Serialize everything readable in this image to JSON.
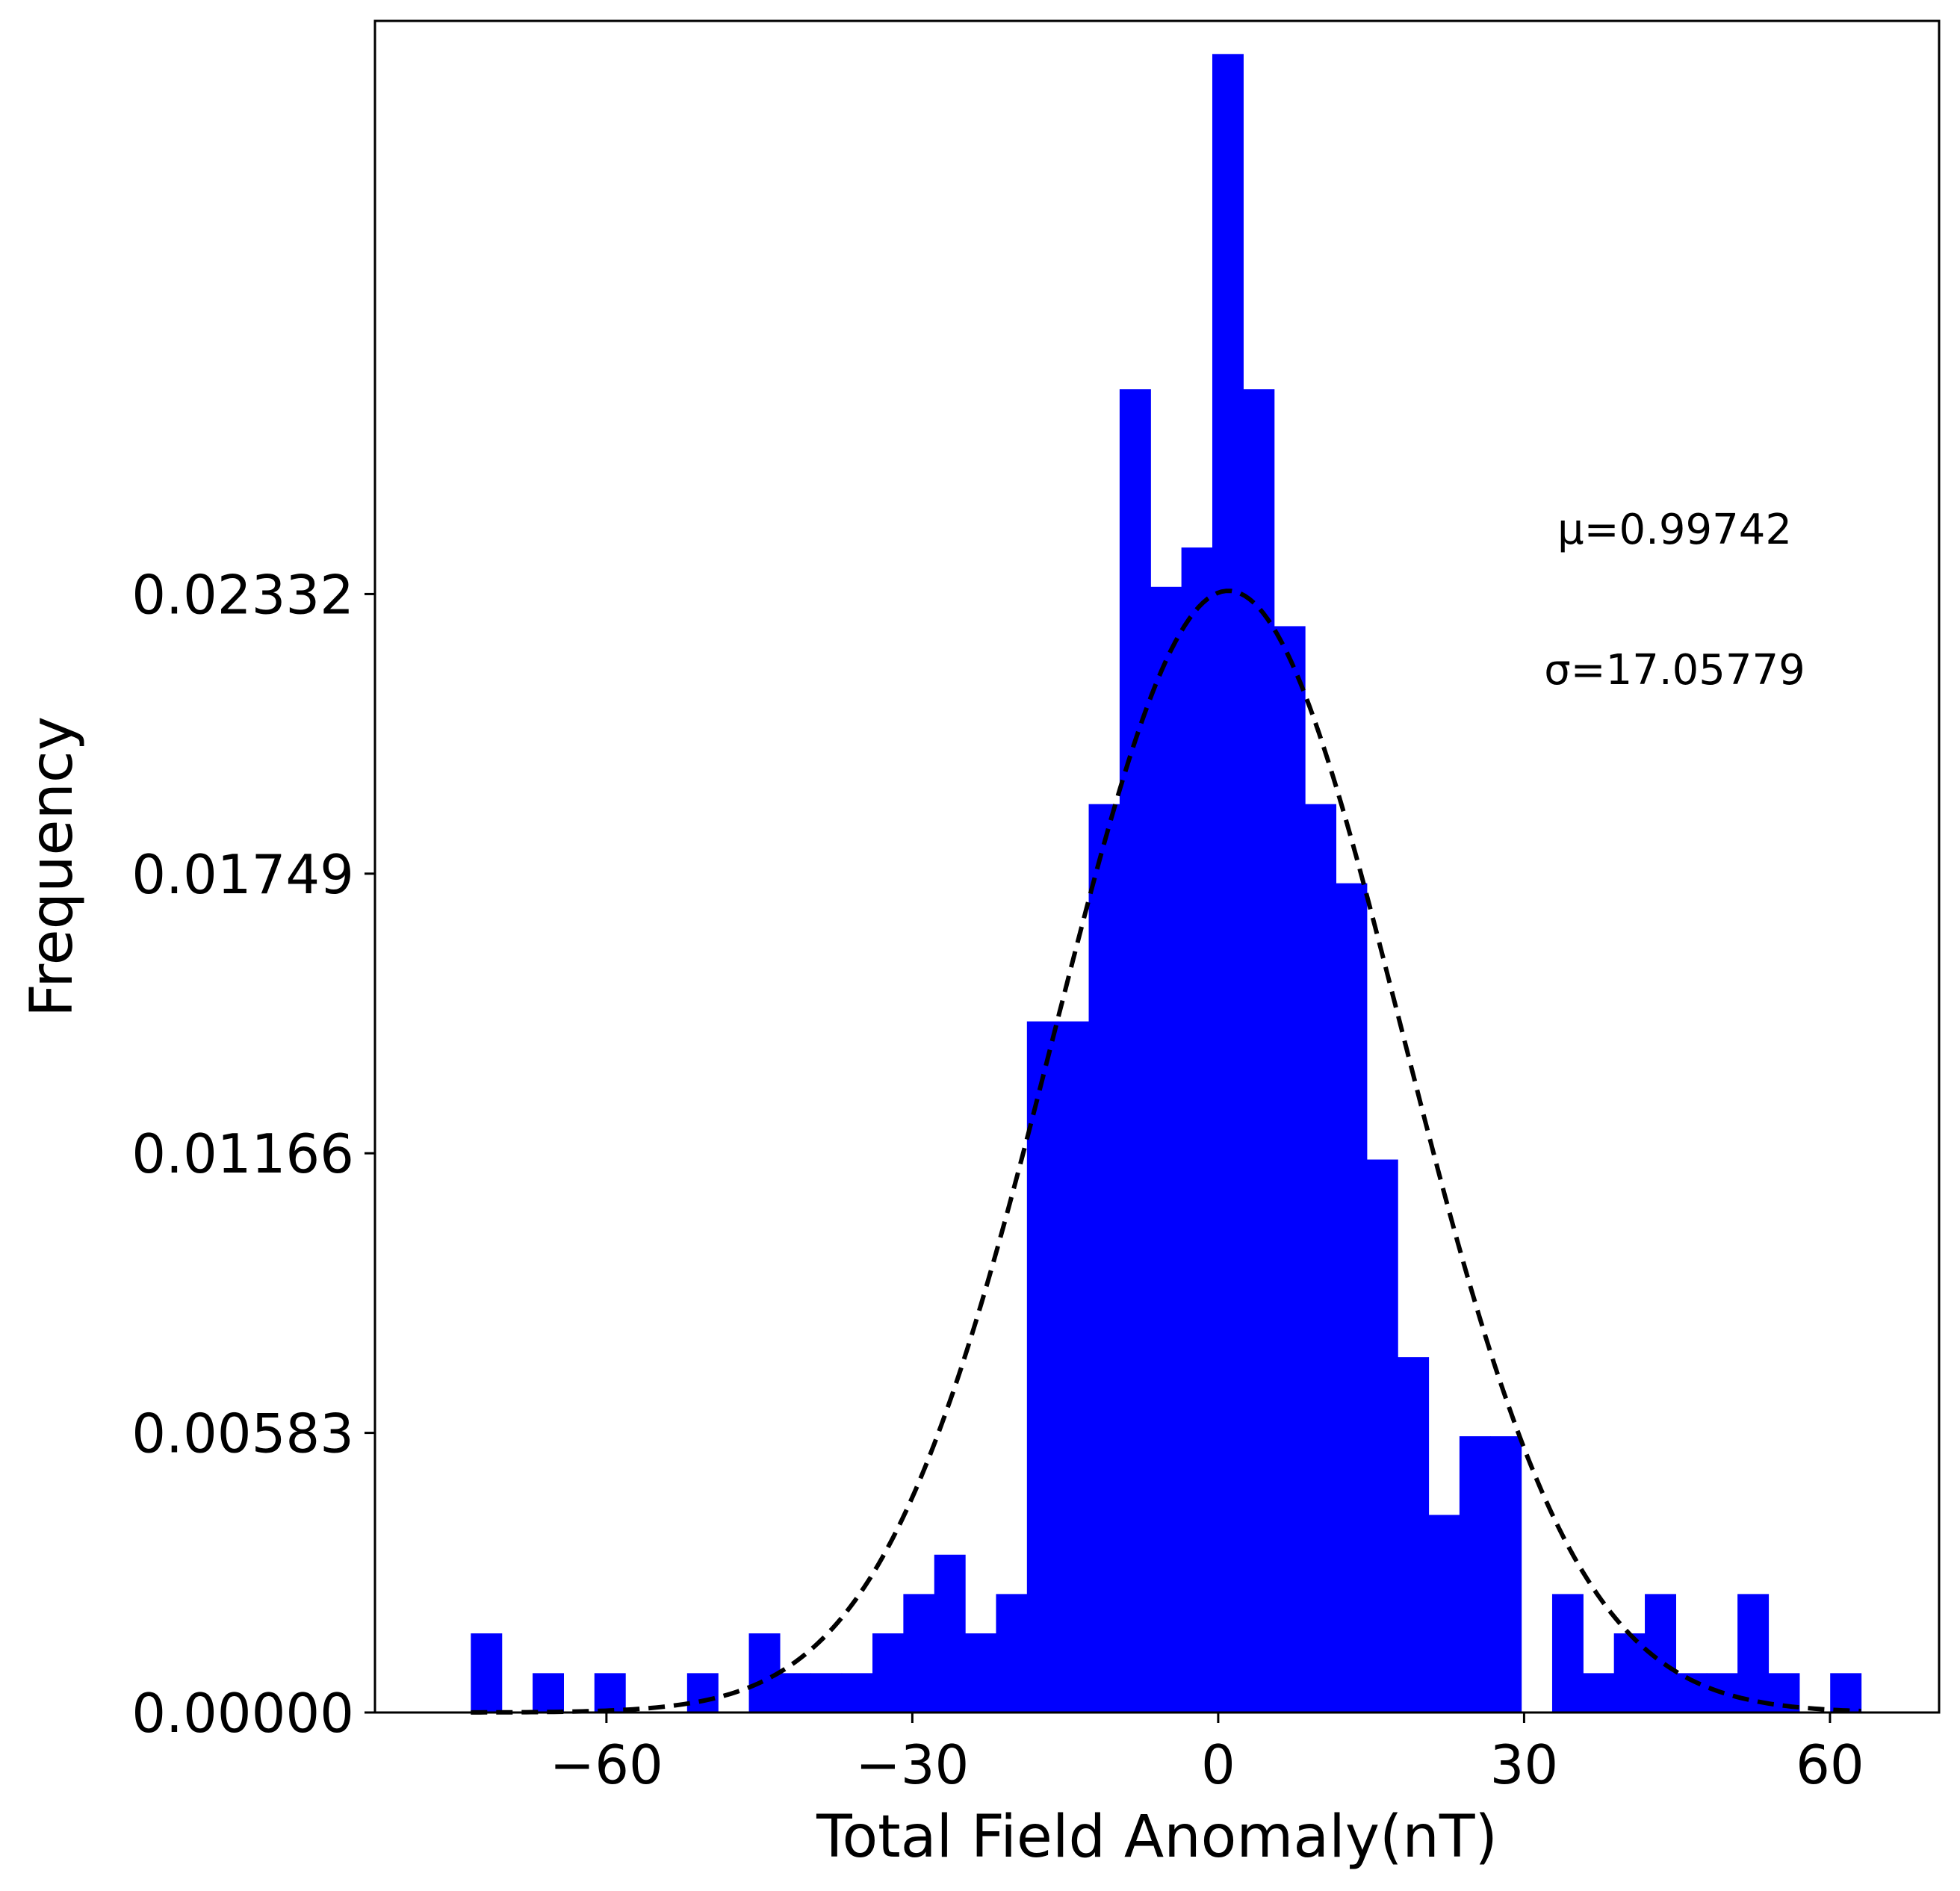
{
  "chart_data": {
    "type": "bar",
    "xlabel": "Total Field Anomaly(nT)",
    "ylabel": "Frequency",
    "xlim": [
      -82.7,
      70.7
    ],
    "ylim": [
      0,
      0.03527
    ],
    "xticks": [
      -60,
      -30,
      0,
      30,
      60
    ],
    "xtick_labels": [
      "−60",
      "−30",
      "0",
      "30",
      "60"
    ],
    "yticks": [
      0.0,
      0.00583,
      0.01166,
      0.01749,
      0.02332
    ],
    "ytick_labels": [
      "0.00000",
      "0.00583",
      "0.01166",
      "0.01749",
      "0.02332"
    ],
    "grid": false,
    "bin_edges": [
      -73.3,
      -70.27,
      -67.24,
      -64.21,
      -61.18,
      -58.15,
      -55.12,
      -52.09,
      -49.06,
      -46.03,
      -43.0,
      -39.97,
      -36.94,
      -33.91,
      -30.88,
      -27.85,
      -24.82,
      -21.79,
      -18.76,
      -15.73,
      -12.7,
      -9.67,
      -6.64,
      -3.61,
      -0.58,
      2.45,
      5.48,
      8.51,
      11.54,
      14.57,
      17.6,
      20.63,
      23.66,
      26.69,
      29.72,
      32.75,
      35.78,
      38.81,
      41.84,
      44.87,
      47.9,
      50.93,
      53.96,
      56.99,
      60.02,
      63.05
    ],
    "values": [
      0.00165,
      0,
      0.00082,
      0,
      0.00082,
      0,
      0,
      0.00082,
      0,
      0.00165,
      0.00082,
      0.00082,
      0.00082,
      0.00165,
      0.00247,
      0.00329,
      0.00165,
      0.00247,
      0.01441,
      0.01441,
      0.01894,
      0.02759,
      0.02347,
      0.02429,
      0.03458,
      0.02759,
      0.02265,
      0.01894,
      0.01729,
      0.01153,
      0.00741,
      0.00412,
      0.00576,
      0.00576,
      0,
      0.00247,
      0.00082,
      0.00165,
      0.00247,
      0.00082,
      0.00082,
      0.00247,
      0.00082,
      0,
      0.00082
    ],
    "bar_color": "#0000ff",
    "fit_curve": {
      "type": "normal_pdf",
      "style": "dashed",
      "color": "#000000",
      "mu": 0.99742,
      "sigma": 17.05779,
      "x_range": [
        -73.3,
        63.05
      ]
    },
    "annotations": {
      "mu_label": "μ=0.99742",
      "sigma_label": "σ=17.05779"
    }
  }
}
